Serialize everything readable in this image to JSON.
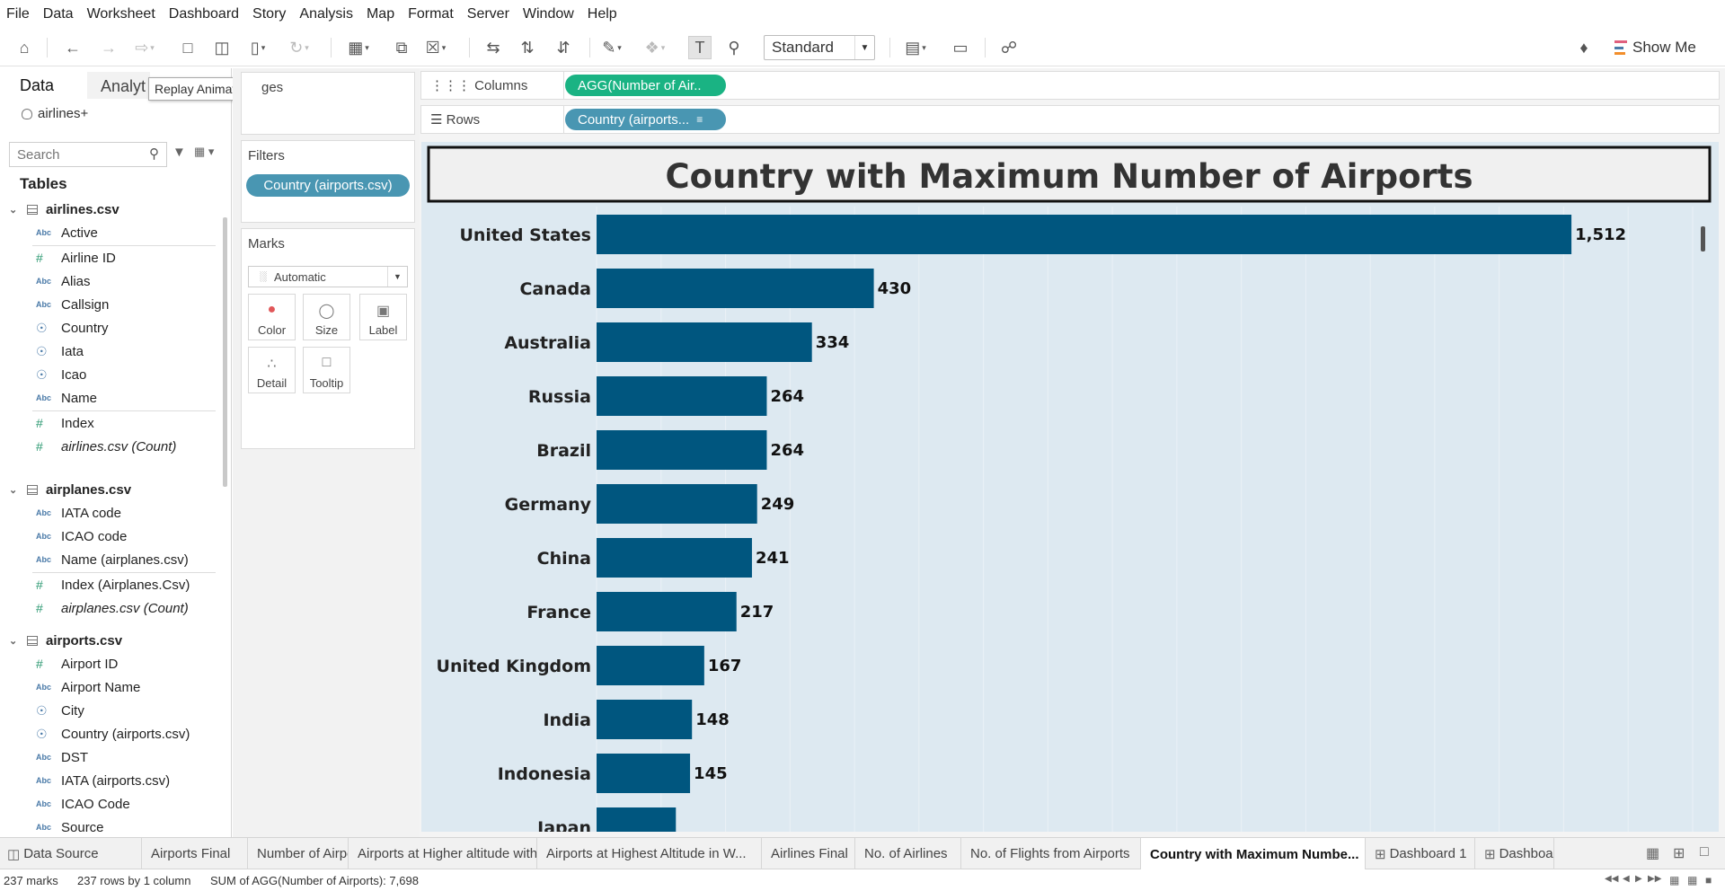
{
  "menu": [
    "File",
    "Data",
    "Worksheet",
    "Dashboard",
    "Story",
    "Analysis",
    "Map",
    "Format",
    "Server",
    "Window",
    "Help"
  ],
  "toolbar": {
    "fit": "Standard",
    "show_me": "Show Me"
  },
  "data_pane": {
    "tab_data": "Data",
    "tab_analytics": "Analyt",
    "tooltip": "Replay Animation",
    "datasource": "airlines+",
    "search_placeholder": "Search",
    "tables_header": "Tables",
    "groups": [
      {
        "name": "airlines.csv",
        "fields": [
          {
            "type": "Abc",
            "name": "Active"
          },
          {
            "type": "#",
            "name": "Airline ID"
          },
          {
            "type": "Abc",
            "name": "Alias"
          },
          {
            "type": "Abc",
            "name": "Callsign"
          },
          {
            "type": "geo",
            "name": "Country"
          },
          {
            "type": "geo",
            "name": "Iata"
          },
          {
            "type": "geo",
            "name": "Icao"
          },
          {
            "type": "Abc",
            "name": "Name"
          },
          {
            "type": "#",
            "name": "Index"
          },
          {
            "type": "#",
            "name": "airlines.csv (Count)",
            "italic": true
          }
        ]
      },
      {
        "name": "airplanes.csv",
        "fields": [
          {
            "type": "Abc",
            "name": "IATA code"
          },
          {
            "type": "Abc",
            "name": "ICAO code"
          },
          {
            "type": "Abc",
            "name": "Name (airplanes.csv)"
          },
          {
            "type": "#",
            "name": "Index (Airplanes.Csv)"
          },
          {
            "type": "#",
            "name": "airplanes.csv (Count)",
            "italic": true
          }
        ]
      },
      {
        "name": "airports.csv",
        "fields": [
          {
            "type": "#",
            "name": "Airport ID"
          },
          {
            "type": "Abc",
            "name": "Airport Name"
          },
          {
            "type": "geo",
            "name": "City"
          },
          {
            "type": "geo",
            "name": "Country (airports.csv)"
          },
          {
            "type": "Abc",
            "name": "DST"
          },
          {
            "type": "Abc",
            "name": "IATA (airports.csv)"
          },
          {
            "type": "Abc",
            "name": "ICAO Code"
          },
          {
            "type": "Abc",
            "name": "Source"
          }
        ]
      }
    ]
  },
  "cards": {
    "pages": "ges",
    "filters": "Filters",
    "filter_pill": "Country (airports.csv)",
    "marks": "Marks",
    "mark_type": "Automatic",
    "mark_buttons": [
      "Color",
      "Size",
      "Label",
      "Detail",
      "Tooltip"
    ]
  },
  "shelves": {
    "columns_label": "Columns",
    "columns_pill": "AGG(Number of Air..",
    "rows_label": "Rows",
    "rows_pill": "Country (airports..."
  },
  "colors": {
    "bar": "#00567f",
    "view_bg": "#dde9f1",
    "columns_pill": "#1ab383",
    "rows_pill": "#4996b2"
  },
  "chart_data": {
    "type": "bar",
    "orientation": "horizontal",
    "title": "Country with Maximum Number of Airports",
    "categories": [
      "United States",
      "Canada",
      "Australia",
      "Russia",
      "Brazil",
      "Germany",
      "China",
      "France",
      "United Kingdom",
      "India",
      "Indonesia",
      "Japan"
    ],
    "values": [
      1512,
      430,
      334,
      264,
      264,
      249,
      241,
      217,
      167,
      148,
      145,
      123
    ],
    "data_labels": [
      "1,512",
      "430",
      "334",
      "264",
      "264",
      "249",
      "241",
      "217",
      "167",
      "148",
      "145",
      ""
    ],
    "xlim": [
      0,
      1700
    ],
    "grid": true
  },
  "sheet_tabs": [
    {
      "label": "Data Source",
      "icon": true
    },
    {
      "label": "Airports Final"
    },
    {
      "label": "Number of Airports"
    },
    {
      "label": "Airports at Higher altitude within..."
    },
    {
      "label": "Airports at Highest Altitude in W..."
    },
    {
      "label": "Airlines Final"
    },
    {
      "label": "No. of Airlines"
    },
    {
      "label": "No. of Flights from Airports"
    },
    {
      "label": "Country with Maximum Numbe...",
      "active": true
    },
    {
      "label": "Dashboard 1",
      "icon": true
    },
    {
      "label": "Dashboa",
      "icon": true
    }
  ],
  "status": {
    "marks": "237 marks",
    "rows": "237 rows by 1 column",
    "sum": "SUM of AGG(Number of Airports): 7,698"
  }
}
